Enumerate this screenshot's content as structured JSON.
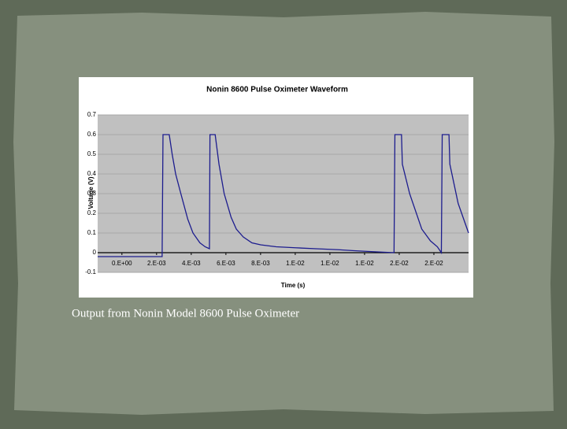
{
  "chart_data": {
    "type": "line",
    "title": "Nonin 8600 Pulse Oximeter Waveform",
    "x_label": "Time (s)",
    "y_label": "Voltage (V)",
    "caption": "Output from Nonin Model 8600 Pulse Oximeter",
    "x": [
      -0.0014,
      0.0,
      0.0015,
      0.00232,
      0.00237,
      0.00273,
      0.0029,
      0.0031,
      0.0034,
      0.0038,
      0.0041,
      0.0045,
      0.0048,
      0.00505,
      0.00508,
      0.00512,
      0.00538,
      0.0056,
      0.0059,
      0.0063,
      0.0066,
      0.007,
      0.0075,
      0.008,
      0.0089,
      0.01,
      0.0112,
      0.0125,
      0.0134,
      0.0145,
      0.0157,
      0.01575,
      0.01613,
      0.01618,
      0.0166,
      0.0173,
      0.0178,
      0.0182,
      0.01843,
      0.01848,
      0.01887,
      0.01892,
      0.0194,
      0.0198,
      0.02
    ],
    "values": [
      -0.02,
      -0.02,
      -0.02,
      -0.02,
      0.6,
      0.6,
      0.5,
      0.4,
      0.3,
      0.17,
      0.1,
      0.05,
      0.03,
      0.02,
      0.6,
      0.6,
      0.6,
      0.45,
      0.3,
      0.18,
      0.12,
      0.08,
      0.05,
      0.04,
      0.03,
      0.025,
      0.02,
      0.015,
      0.01,
      0.005,
      0.0,
      0.6,
      0.6,
      0.45,
      0.3,
      0.12,
      0.06,
      0.03,
      0.0,
      0.6,
      0.6,
      0.45,
      0.25,
      0.15,
      0.1
    ],
    "color": "#1c1c8e",
    "xlim": [
      -0.0014,
      0.02
    ],
    "xticks": [
      {
        "value": 0,
        "label": "0.E+00"
      },
      {
        "value": 0.002,
        "label": "2.E-03"
      },
      {
        "value": 0.004,
        "label": "4.E-03"
      },
      {
        "value": 0.006,
        "label": "6.E-03"
      },
      {
        "value": 0.008,
        "label": "8.E-03"
      },
      {
        "value": 0.01,
        "label": "1.E-02"
      },
      {
        "value": 0.012,
        "label": "1.E-02"
      },
      {
        "value": 0.014,
        "label": "1.E-02"
      },
      {
        "value": 0.016,
        "label": "2.E-02"
      },
      {
        "value": 0.018,
        "label": "2.E-02"
      }
    ],
    "ylim": [
      -0.1,
      0.7
    ],
    "yticks": [
      -0.1,
      0,
      0.1,
      0.2,
      0.3,
      0.4,
      0.5,
      0.6,
      0.7
    ],
    "grid": true
  }
}
